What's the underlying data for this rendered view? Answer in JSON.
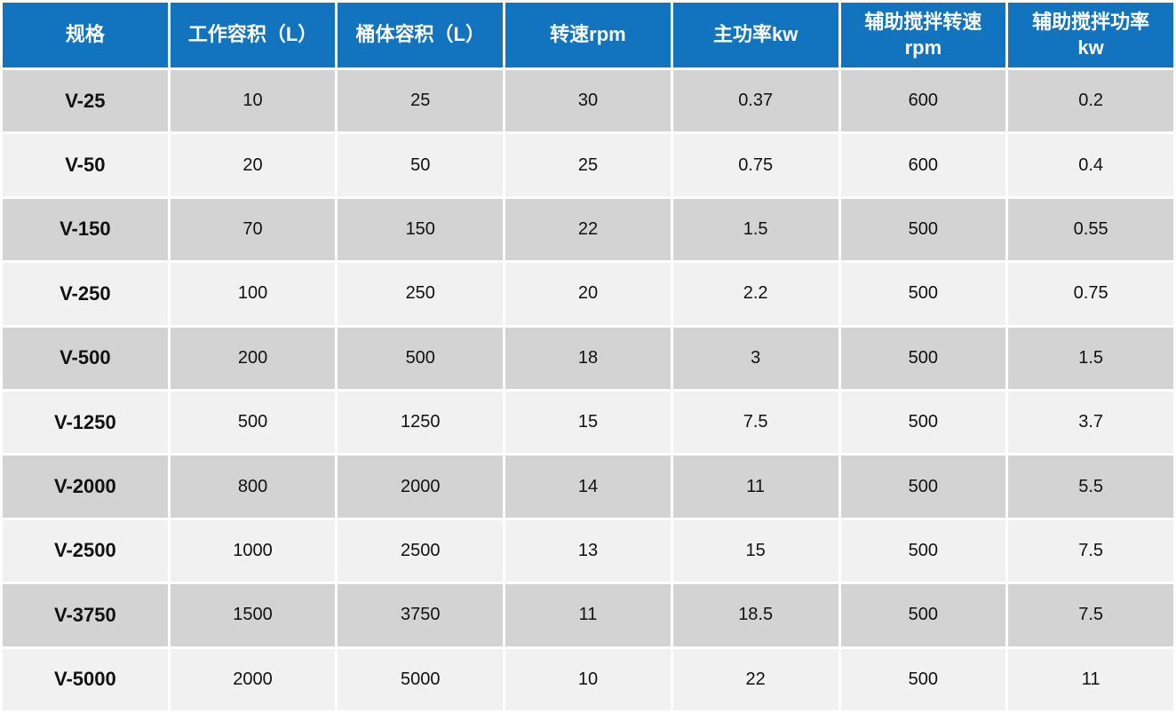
{
  "chart_data": {
    "type": "table",
    "title": "",
    "columns": [
      "规格",
      "工作容积（L）",
      "桶体容积（L）",
      "转速rpm",
      "主功率kw",
      "辅助搅拌转速\nrpm",
      "辅助搅拌功率\nkw"
    ],
    "rows": [
      [
        "V-25",
        "10",
        "25",
        "30",
        "0.37",
        "600",
        "0.2"
      ],
      [
        "V-50",
        "20",
        "50",
        "25",
        "0.75",
        "600",
        "0.4"
      ],
      [
        "V-150",
        "70",
        "150",
        "22",
        "1.5",
        "500",
        "0.55"
      ],
      [
        "V-250",
        "100",
        "250",
        "20",
        "2.2",
        "500",
        "0.75"
      ],
      [
        "V-500",
        "200",
        "500",
        "18",
        "3",
        "500",
        "1.5"
      ],
      [
        "V-1250",
        "500",
        "1250",
        "15",
        "7.5",
        "500",
        "3.7"
      ],
      [
        "V-2000",
        "800",
        "2000",
        "14",
        "11",
        "500",
        "5.5"
      ],
      [
        "V-2500",
        "1000",
        "2500",
        "13",
        "15",
        "500",
        "7.5"
      ],
      [
        "V-3750",
        "1500",
        "3750",
        "11",
        "18.5",
        "500",
        "7.5"
      ],
      [
        "V-5000",
        "2000",
        "5000",
        "10",
        "22",
        "500",
        "11"
      ]
    ]
  },
  "colors": {
    "header_bg": "#1273BE",
    "header_text": "#FFFFFF",
    "row_odd_bg": "#D3D3D3",
    "row_even_bg": "#F1F1F2",
    "cell_text": "#111111",
    "grid": "#FFFFFF"
  }
}
